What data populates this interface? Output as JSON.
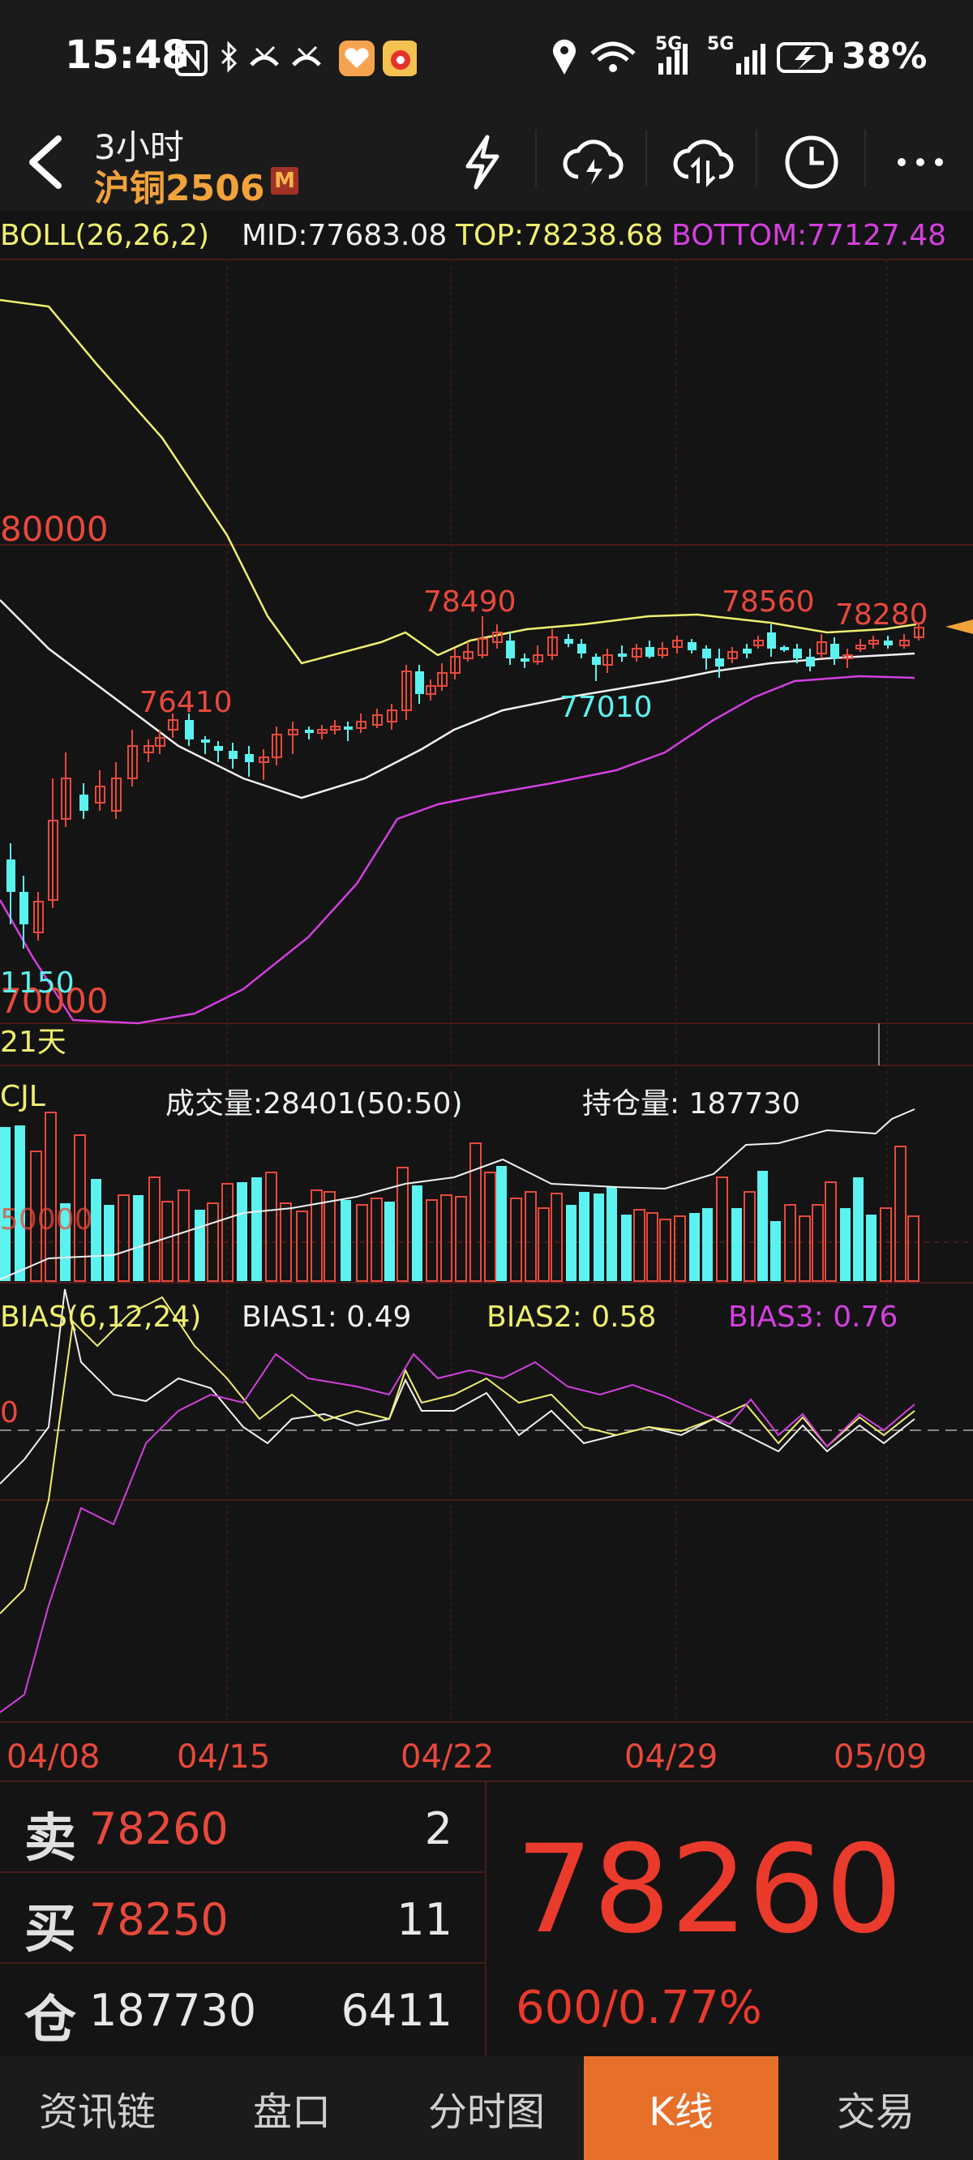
{
  "status_bar": {
    "time": "15:48",
    "left_icons": [
      "nfc-icon",
      "bluetooth-icon",
      "missed-call-icon",
      "missed-call-icon",
      "app-heart-icon",
      "weibo-icon"
    ],
    "network_1": "5G",
    "network_2": "5G",
    "battery": "38%"
  },
  "header": {
    "period": "3小时",
    "contract": "沪铜2506",
    "badge": "M",
    "actions": [
      "flash-icon",
      "cloud-lightning-icon",
      "cloud-sync-icon",
      "clock-icon",
      "more-icon"
    ]
  },
  "boll": {
    "label": "BOLL(26,26,2)",
    "mid": "MID:77683.08",
    "top": "TOP:78238.68",
    "bottom": "BOTTOM:77127.48"
  },
  "colors": {
    "up": "#e8493b",
    "down": "#5cf2f0",
    "yellow": "#f0f070",
    "magenta": "#d43fe0",
    "white": "#f0f0f0",
    "orange_tab": "#e66f2a"
  },
  "price_chart": {
    "y_labels": [
      "80000",
      "70000"
    ],
    "annotations": [
      "78490",
      "78560",
      "78280",
      "76410",
      "77010",
      "1150"
    ],
    "span_label": "21天"
  },
  "volume": {
    "label": "CJL",
    "volume_text": "成交量:28401(50:50)",
    "oi_text": "持仓量: 187730",
    "axis_label": "50000"
  },
  "bias": {
    "label": "BIAS(6,12,24)",
    "bias1": "BIAS1: 0.49",
    "bias2": "BIAS2: 0.58",
    "bias3": "BIAS3: 0.76",
    "zero_label": "0"
  },
  "x_axis_dates": [
    "04/08",
    "04/15",
    "04/22",
    "04/29",
    "05/09"
  ],
  "orderbook": {
    "sell_tag": "卖",
    "sell_price": "78260",
    "sell_qty": "2",
    "buy_tag": "买",
    "buy_price": "78250",
    "buy_qty": "11",
    "oi_tag": "仓",
    "oi_value": "187730",
    "oi_change": "6411"
  },
  "last_price": "78260",
  "change": "600/0.77%",
  "tabs": [
    {
      "label": "资讯链",
      "active": false
    },
    {
      "label": "盘口",
      "active": false
    },
    {
      "label": "分时图",
      "active": false
    },
    {
      "label": "K线",
      "active": true
    },
    {
      "label": "交易",
      "active": false
    }
  ]
}
